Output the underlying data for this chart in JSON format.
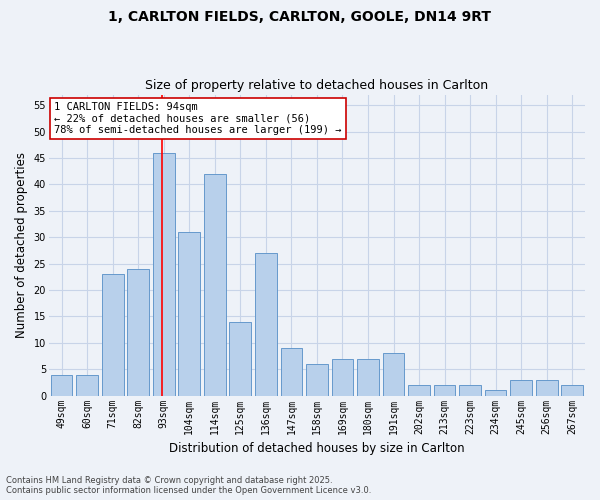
{
  "title_line1": "1, CARLTON FIELDS, CARLTON, GOOLE, DN14 9RT",
  "title_line2": "Size of property relative to detached houses in Carlton",
  "xlabel": "Distribution of detached houses by size in Carlton",
  "ylabel": "Number of detached properties",
  "categories": [
    "49sqm",
    "60sqm",
    "71sqm",
    "82sqm",
    "93sqm",
    "104sqm",
    "114sqm",
    "125sqm",
    "136sqm",
    "147sqm",
    "158sqm",
    "169sqm",
    "180sqm",
    "191sqm",
    "202sqm",
    "213sqm",
    "223sqm",
    "234sqm",
    "245sqm",
    "256sqm",
    "267sqm"
  ],
  "values": [
    4,
    4,
    23,
    24,
    46,
    31,
    42,
    14,
    27,
    9,
    6,
    7,
    7,
    8,
    2,
    2,
    2,
    1,
    3,
    3,
    2
  ],
  "bar_color": "#b8d0eb",
  "bar_edge_color": "#6699cc",
  "grid_color": "#c8d4e8",
  "background_color": "#eef2f8",
  "red_line_index": 4,
  "annotation_text": "1 CARLTON FIELDS: 94sqm\n← 22% of detached houses are smaller (56)\n78% of semi-detached houses are larger (199) →",
  "annotation_box_color": "#ffffff",
  "annotation_box_edge": "#cc0000",
  "ylim": [
    0,
    57
  ],
  "yticks": [
    0,
    5,
    10,
    15,
    20,
    25,
    30,
    35,
    40,
    45,
    50,
    55
  ],
  "footnote": "Contains HM Land Registry data © Crown copyright and database right 2025.\nContains public sector information licensed under the Open Government Licence v3.0.",
  "title_fontsize": 10,
  "subtitle_fontsize": 9,
  "axis_label_fontsize": 8.5,
  "tick_fontsize": 7,
  "annotation_fontsize": 7.5,
  "footnote_fontsize": 6
}
